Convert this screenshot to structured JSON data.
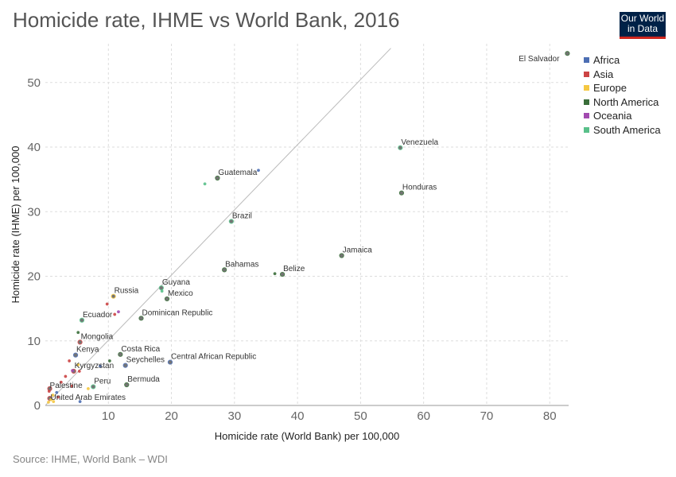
{
  "page": {
    "title": "Homicide rate, IHME vs World Bank, 2016",
    "source": "Source: IHME, World Bank – WDI",
    "logo": {
      "line1": "Our World",
      "line2": "in Data"
    }
  },
  "chart_data": {
    "type": "scatter",
    "title": "Homicide rate, IHME vs World Bank, 2016",
    "xlabel": "Homicide rate (World Bank) per 100,000",
    "ylabel": "Homicide rate (IHME) per 100,000",
    "xlim": [
      0,
      83
    ],
    "ylim": [
      0,
      56
    ],
    "x_ticks": [
      10,
      20,
      30,
      40,
      50,
      60,
      70,
      80
    ],
    "y_ticks": [
      0,
      10,
      20,
      30,
      40,
      50
    ],
    "reference_line": "y = x",
    "legend": [
      {
        "name": "Africa",
        "color": "#4c6eb3"
      },
      {
        "name": "Asia",
        "color": "#cc4444"
      },
      {
        "name": "Europe",
        "color": "#f5c842"
      },
      {
        "name": "North America",
        "color": "#3a6e3a"
      },
      {
        "name": "Oceania",
        "color": "#a24ab0"
      },
      {
        "name": "South America",
        "color": "#59c08a"
      }
    ],
    "points": [
      {
        "name": "El Salvador",
        "x": 82.8,
        "y": 54.5,
        "region": "North America",
        "label": true
      },
      {
        "name": "Venezuela",
        "x": 56.3,
        "y": 39.9,
        "region": "South America",
        "label": true
      },
      {
        "name": "Honduras",
        "x": 56.5,
        "y": 32.9,
        "region": "North America",
        "label": true
      },
      {
        "name": "Guatemala",
        "x": 27.3,
        "y": 35.2,
        "region": "North America",
        "label": true
      },
      {
        "name": "Brazil",
        "x": 29.5,
        "y": 28.5,
        "region": "South America",
        "label": true
      },
      {
        "name": "Jamaica",
        "x": 47.0,
        "y": 23.2,
        "region": "North America",
        "label": true
      },
      {
        "name": "Bahamas",
        "x": 28.4,
        "y": 21.0,
        "region": "North America",
        "label": true
      },
      {
        "name": "Belize",
        "x": 37.6,
        "y": 20.3,
        "region": "North America",
        "label": true
      },
      {
        "name": "Guyana",
        "x": 18.4,
        "y": 18.2,
        "region": "South America",
        "label": true
      },
      {
        "name": "Russia",
        "x": 10.8,
        "y": 16.9,
        "region": "Europe",
        "label": true
      },
      {
        "name": "Mexico",
        "x": 19.3,
        "y": 16.5,
        "region": "North America",
        "label": true
      },
      {
        "name": "Ecuador",
        "x": 5.8,
        "y": 13.2,
        "region": "South America",
        "label": true
      },
      {
        "name": "Dominican Republic",
        "x": 15.2,
        "y": 13.5,
        "region": "North America",
        "label": true
      },
      {
        "name": "Mongolia",
        "x": 5.5,
        "y": 9.8,
        "region": "Asia",
        "label": true
      },
      {
        "name": "Kenya",
        "x": 4.8,
        "y": 7.8,
        "region": "Africa",
        "label": true
      },
      {
        "name": "Costa Rica",
        "x": 11.9,
        "y": 7.9,
        "region": "North America",
        "label": true
      },
      {
        "name": "Seychelles",
        "x": 12.7,
        "y": 6.2,
        "region": "Africa",
        "label": true
      },
      {
        "name": "Central African Republic",
        "x": 19.8,
        "y": 6.7,
        "region": "Africa",
        "label": true
      },
      {
        "name": "Kyrgyzstan",
        "x": 4.5,
        "y": 5.3,
        "region": "Asia",
        "label": true
      },
      {
        "name": "Bermuda",
        "x": 12.9,
        "y": 3.2,
        "region": "North America",
        "label": true
      },
      {
        "name": "Peru",
        "x": 7.6,
        "y": 2.9,
        "region": "South America",
        "label": true
      },
      {
        "name": "Palestine",
        "x": 0.7,
        "y": 2.6,
        "region": "Asia",
        "label": true
      },
      {
        "name": "United Arab Emirates",
        "x": 0.7,
        "y": 1.1,
        "region": "Asia",
        "label": true
      },
      {
        "x": 33.8,
        "y": 36.4,
        "region": "Africa"
      },
      {
        "x": 25.3,
        "y": 34.3,
        "region": "South America"
      },
      {
        "x": 36.4,
        "y": 20.4,
        "region": "North America"
      },
      {
        "x": 9.8,
        "y": 15.7,
        "region": "Asia"
      },
      {
        "x": 11.0,
        "y": 14.1,
        "region": "Asia"
      },
      {
        "x": 11.6,
        "y": 14.5,
        "region": "Oceania"
      },
      {
        "x": 18.5,
        "y": 17.7,
        "region": "South America"
      },
      {
        "x": 5.2,
        "y": 11.3,
        "region": "North America"
      },
      {
        "x": 3.8,
        "y": 6.9,
        "region": "Asia"
      },
      {
        "x": 10.2,
        "y": 6.9,
        "region": "North America"
      },
      {
        "x": 5.2,
        "y": 6.3,
        "region": "Europe"
      },
      {
        "x": 4.3,
        "y": 5.4,
        "region": "Oceania"
      },
      {
        "x": 5.4,
        "y": 5.3,
        "region": "Asia"
      },
      {
        "x": 3.2,
        "y": 4.5,
        "region": "Asia"
      },
      {
        "x": 2.5,
        "y": 3.6,
        "region": "Asia"
      },
      {
        "x": 4.2,
        "y": 3.0,
        "region": "Asia"
      },
      {
        "x": 6.8,
        "y": 2.6,
        "region": "Europe"
      },
      {
        "x": 1.8,
        "y": 2.0,
        "region": "Africa"
      },
      {
        "x": 1.2,
        "y": 1.6,
        "region": "Europe"
      },
      {
        "x": 0.9,
        "y": 0.9,
        "region": "Europe"
      },
      {
        "x": 0.5,
        "y": 0.5,
        "region": "Europe"
      },
      {
        "x": 1.3,
        "y": 0.6,
        "region": "Europe"
      },
      {
        "x": 2.0,
        "y": 1.3,
        "region": "Asia"
      },
      {
        "x": 0.6,
        "y": 2.2,
        "region": "Asia"
      },
      {
        "x": 5.5,
        "y": 0.6,
        "region": "Africa"
      },
      {
        "x": 8.7,
        "y": 6.1,
        "region": "Africa"
      }
    ]
  }
}
